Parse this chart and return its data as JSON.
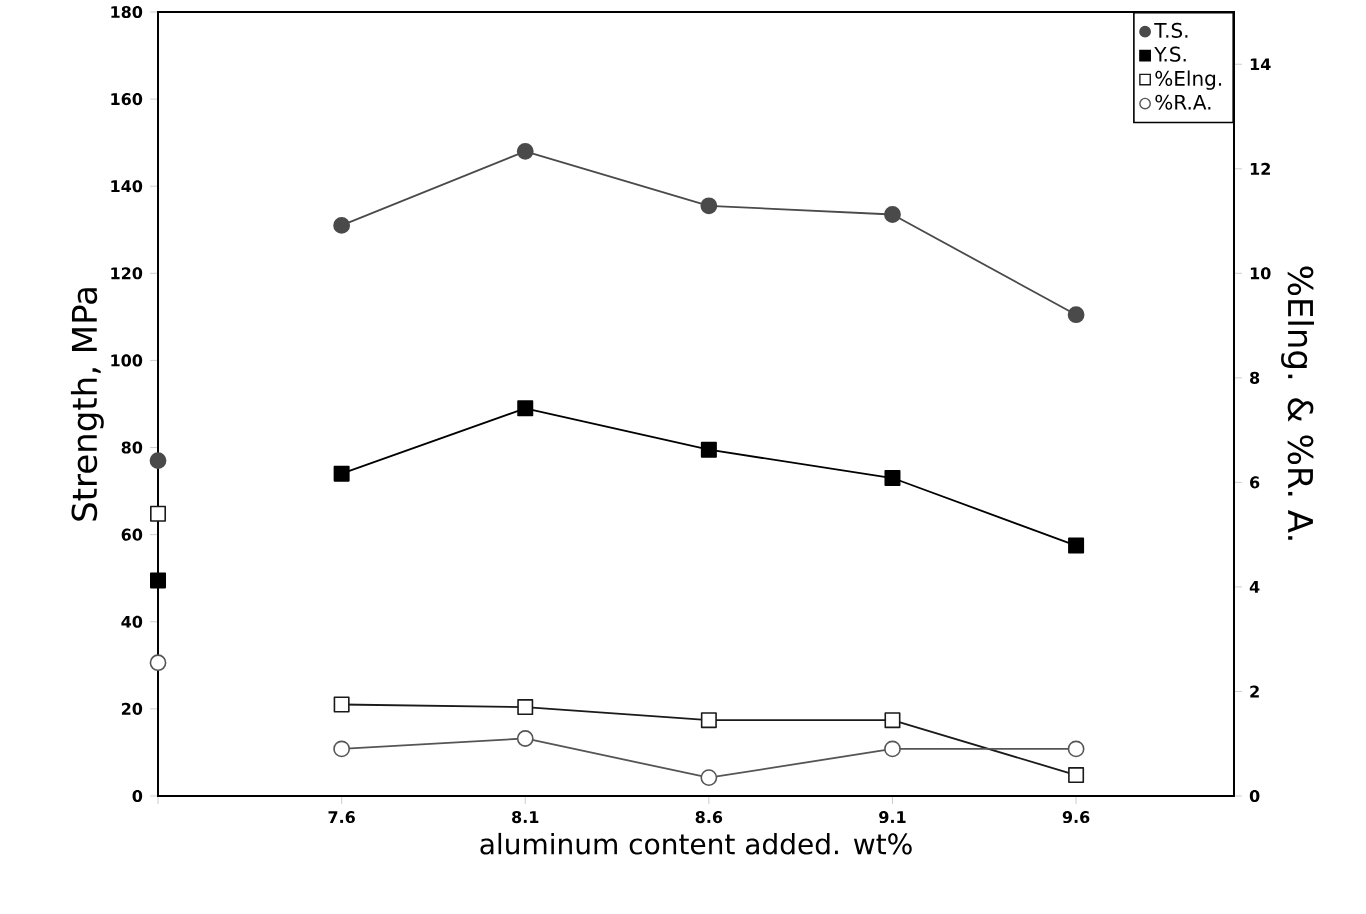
{
  "chart_data": {
    "type": "line",
    "xlabel": "aluminum content added. wt%",
    "ylabel": "Strength, MPa",
    "y2label": "%Elng. & %R. A.",
    "categories": [
      null,
      "7.6",
      "8.1",
      "8.6",
      "9.1",
      "9.6"
    ],
    "ylim": [
      0,
      180
    ],
    "yticks": [
      0,
      20,
      40,
      60,
      80,
      100,
      120,
      140,
      160,
      180
    ],
    "y2lim": [
      0,
      15
    ],
    "y2ticks": [
      0,
      2,
      4,
      6,
      8,
      10,
      12,
      14
    ],
    "legend": "top right",
    "series": [
      {
        "name": "T.S.",
        "color": "#4a4a4a",
        "marker": "circle",
        "values": [
          null,
          131,
          148,
          135.5,
          133.5,
          110.5
        ]
      },
      {
        "name": "Y.S.",
        "color": "#000000",
        "marker": "square",
        "values": [
          null,
          74,
          89,
          79.5,
          73,
          57.5
        ]
      },
      {
        "name": "%Elng.",
        "color": "#1a1a1a",
        "marker": "square",
        "axis": "y2",
        "values": [
          null,
          1.75,
          1.7,
          1.45,
          1.45,
          0.4
        ]
      },
      {
        "name": "%R.A.",
        "color": "#555555",
        "marker": "circle",
        "axis": "y2",
        "values": [
          null,
          0.9,
          1.1,
          0.35,
          0.9,
          0.9
        ]
      },
      {
        "type": "scatter",
        "color": "#4a4a4a",
        "marker": "circle",
        "values": [
          77,
          null,
          null,
          null,
          null,
          null
        ]
      },
      {
        "type": "scatter",
        "color": "#000000",
        "marker": "square",
        "values": [
          49.5,
          null,
          null,
          null,
          null,
          null
        ]
      },
      {
        "type": "scatter",
        "color": "#1a1a1a",
        "marker": "square",
        "axis": "y2",
        "values": [
          5.4,
          null,
          null,
          null,
          null,
          null
        ]
      },
      {
        "type": "scatter",
        "color": "#555555",
        "marker": "circle",
        "axis": "y2",
        "values": [
          2.55,
          null,
          null,
          null,
          null,
          null
        ]
      }
    ]
  }
}
